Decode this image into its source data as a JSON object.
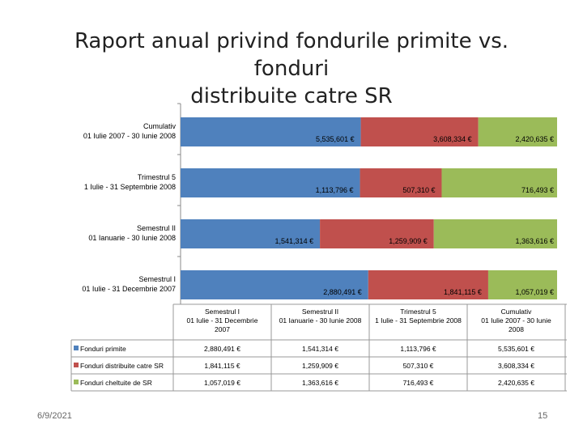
{
  "slide": {
    "title_line1": "Raport anual privind fondurile primite vs. fonduri",
    "title_line2": "distribuite  catre SR",
    "date": "6/9/2021",
    "page_number": "15"
  },
  "chart_data": {
    "type": "bar",
    "orientation": "horizontal",
    "stacked": "percent",
    "categories": [
      [
        "Cumulativ",
        "01 Iulie 2007 - 30 Iunie 2008"
      ],
      [
        "Trimestrul 5",
        "1 Iulie - 31 Septembrie 2008"
      ],
      [
        "Semestrul II",
        "01 Ianuarie - 30 Iunie 2008"
      ],
      [
        "Semestrul I",
        "01 Iulie - 31 Decembrie 2007"
      ]
    ],
    "table_categories": [
      [
        "Semestrul I",
        "01 Iulie - 31 Decembrie",
        "2007"
      ],
      [
        "Semestrul II",
        "01 Ianuarie - 30 Iunie 2008"
      ],
      [
        "Trimestrul 5",
        "1 Iulie - 31 Septembrie 2008"
      ],
      [
        "Cumulativ",
        "01 Iulie 2007 - 30 Iunie",
        "2008"
      ]
    ],
    "series": [
      {
        "name": "Fonduri primite",
        "color": "#4F81BD",
        "values": [
          5535601,
          1113796,
          1541314,
          2880491
        ],
        "labels": [
          "5,535,601 €",
          "1,113,796 €",
          "1,541,314 €",
          "2,880,491 €"
        ],
        "table_values": [
          "2,880,491 €",
          "1,541,314 €",
          "1,113,796 €",
          "5,535,601 €"
        ]
      },
      {
        "name": "Fonduri distribuite catre SR",
        "color": "#C0504D",
        "values": [
          3608334,
          507310,
          1259909,
          1841115
        ],
        "labels": [
          "3,608,334 €",
          "507,310 €",
          "1,259,909 €",
          "1,841,115 €"
        ],
        "table_values": [
          "1,841,115 €",
          "1,259,909 €",
          "507,310 €",
          "3,608,334 €"
        ]
      },
      {
        "name": "Fonduri cheltuite de SR",
        "color": "#9BBB59",
        "values": [
          2420635,
          716493,
          1363616,
          1057019
        ],
        "labels": [
          "2,420,635 €",
          "716,493 €",
          "1,363,616 €",
          "1,057,019 €"
        ],
        "table_values": [
          "1,057,019 €",
          "1,363,616 €",
          "716,493 €",
          "2,420,635 €"
        ]
      }
    ],
    "legend": "table-bottom",
    "grid": false
  }
}
